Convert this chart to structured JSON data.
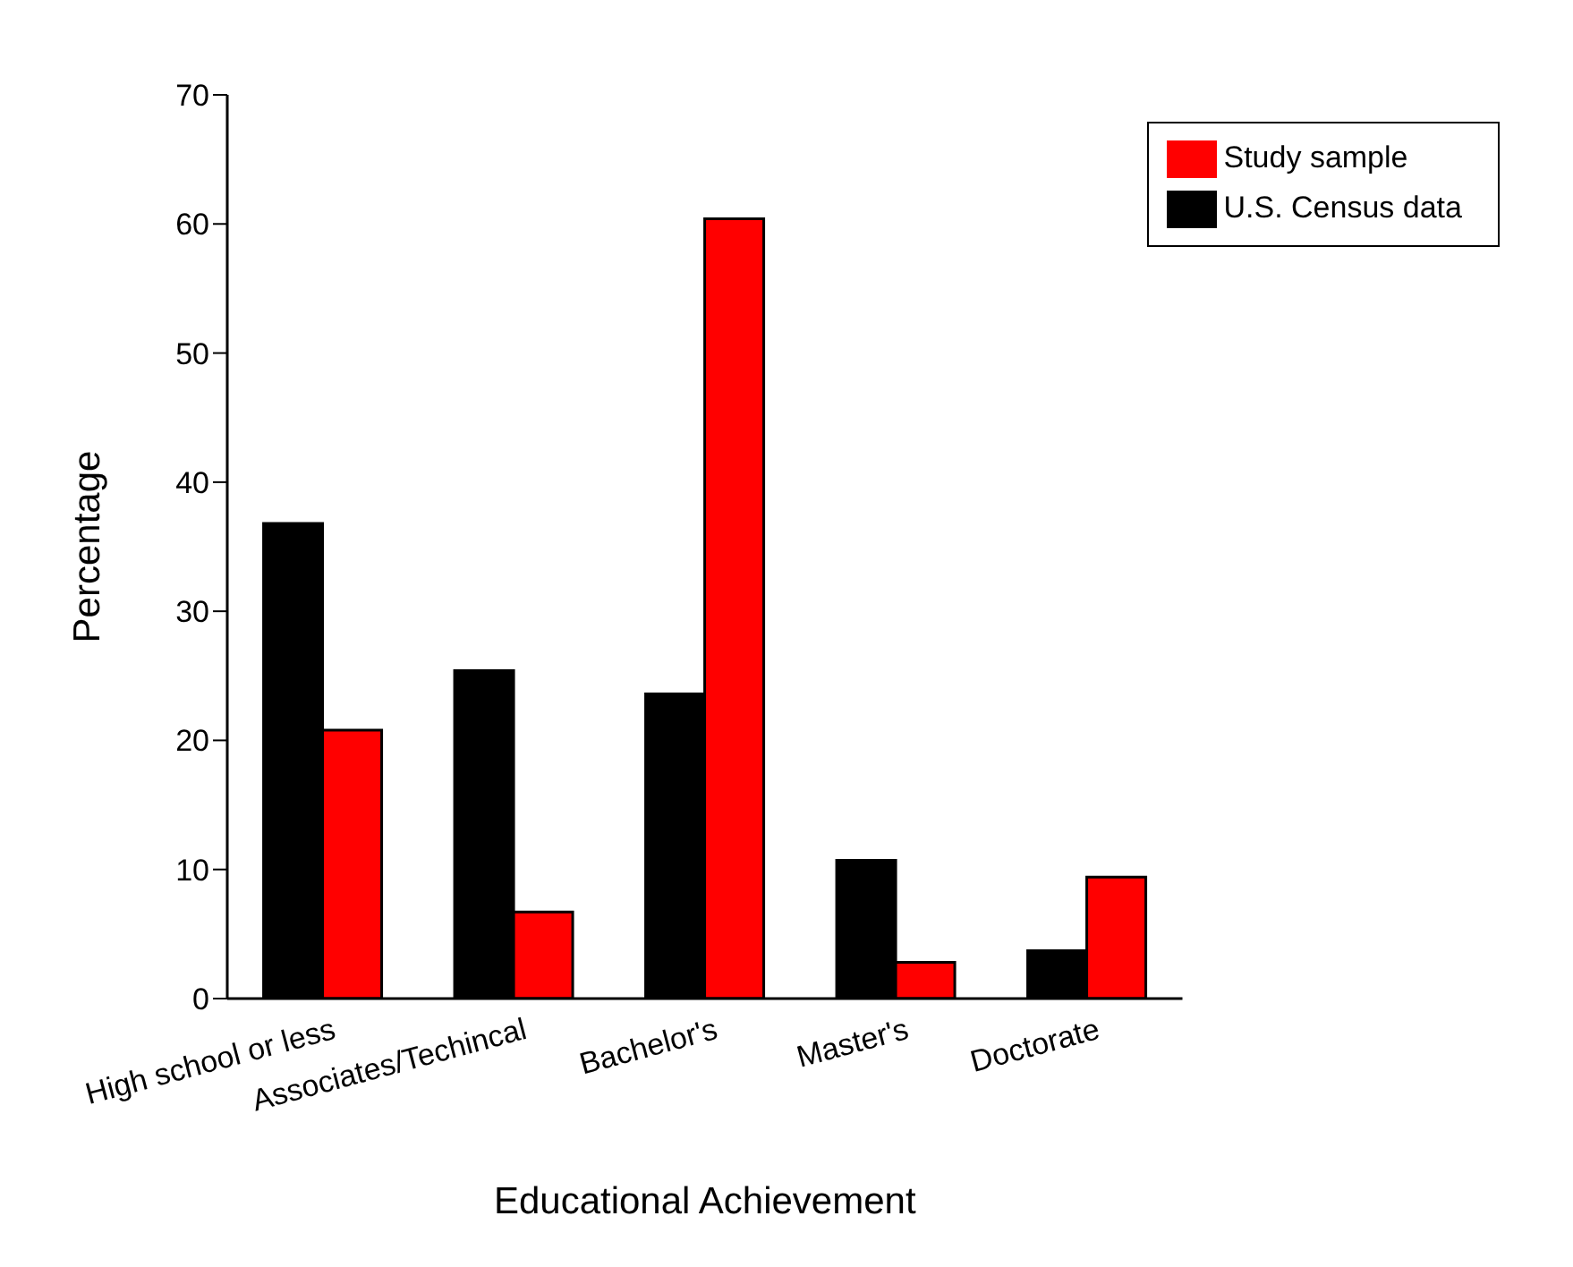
{
  "chart_data": {
    "type": "bar",
    "xlabel": "Educational Achievement",
    "ylabel": "Percentage",
    "categories": [
      "High school or less",
      "Associates/Techincal",
      "Bachelor's",
      "Master's",
      "Doctorate"
    ],
    "series": [
      {
        "name": "U.S. Census data",
        "color": "#000000",
        "values": [
          36.8,
          25.4,
          23.6,
          10.7,
          3.7
        ]
      },
      {
        "name": "Study sample",
        "color": "#ff0000",
        "values": [
          20.8,
          6.7,
          60.4,
          2.8,
          9.4
        ]
      }
    ],
    "ylim": [
      0,
      70
    ],
    "yticks": [
      0,
      10,
      20,
      30,
      40,
      50,
      60,
      70
    ],
    "grid": false,
    "legend": "top right"
  }
}
